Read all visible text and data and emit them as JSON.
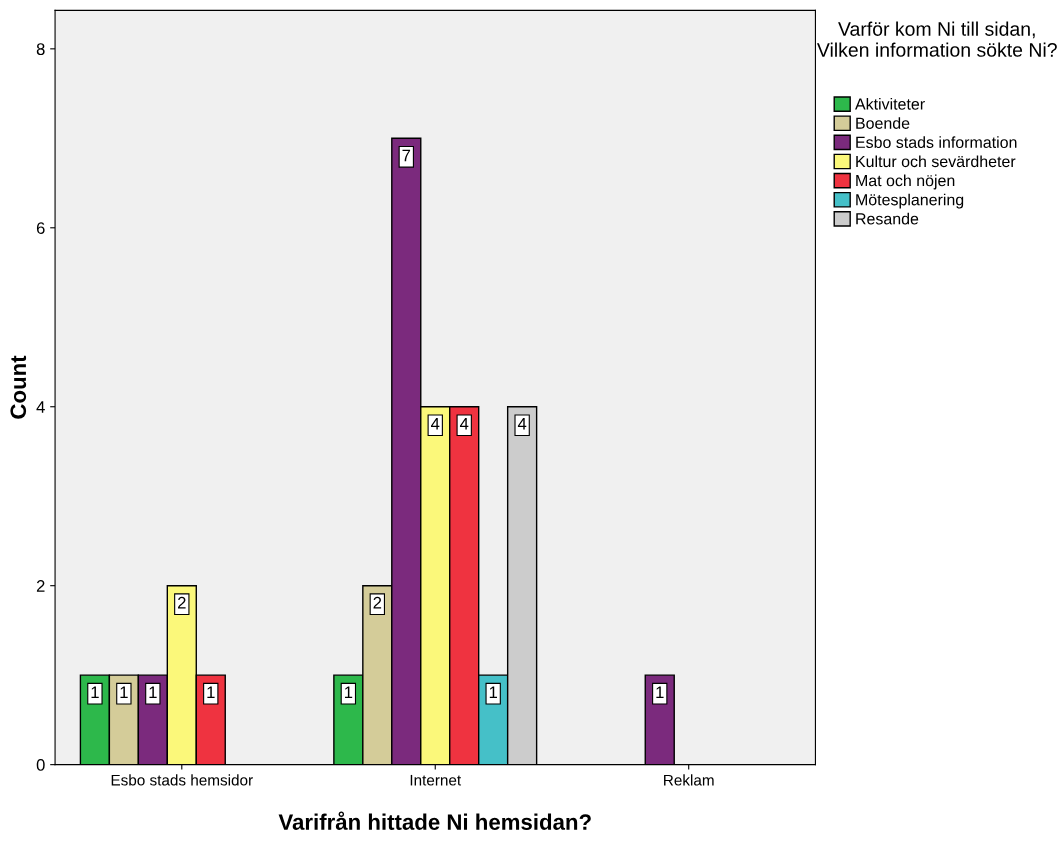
{
  "chart_data": {
    "type": "bar",
    "xlabel": "Varifrån hittade Ni hemsidan?",
    "ylabel": "Count",
    "legend_title": "Varför kom Ni till sidan, Vilken information sökte Ni?",
    "categories": [
      "Esbo stads hemsidor",
      "Internet",
      "Reklam"
    ],
    "series": [
      {
        "name": "Aktiviteter",
        "color": "#2db84b",
        "values": [
          1,
          1,
          null
        ]
      },
      {
        "name": "Boende",
        "color": "#d4cc99",
        "values": [
          1,
          2,
          null
        ]
      },
      {
        "name": "Esbo stads information",
        "color": "#7b2a7d",
        "values": [
          1,
          7,
          1
        ]
      },
      {
        "name": "Kultur och sevärdheter",
        "color": "#fbf87a",
        "values": [
          2,
          4,
          null
        ]
      },
      {
        "name": "Mat och nöjen",
        "color": "#ef3340",
        "values": [
          1,
          4,
          null
        ]
      },
      {
        "name": "Mötesplanering",
        "color": "#45c0c8",
        "values": [
          null,
          1,
          null
        ]
      },
      {
        "name": "Resande",
        "color": "#cccccc",
        "values": [
          null,
          4,
          null
        ]
      }
    ],
    "ylim": [
      0,
      8.43
    ],
    "yticks": [
      0,
      2,
      4,
      6,
      8
    ],
    "grid": false,
    "legend": "right",
    "data_labels": true
  }
}
